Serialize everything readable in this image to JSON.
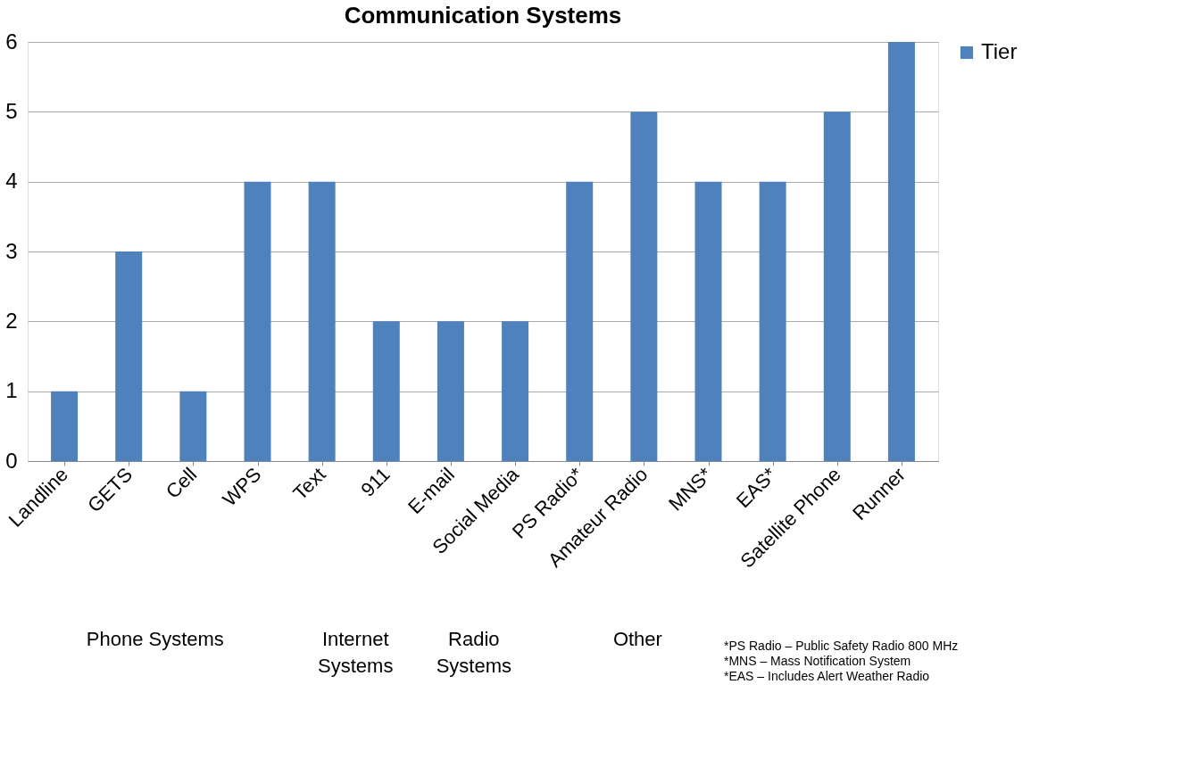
{
  "chart_data": {
    "type": "bar",
    "title": "Communication Systems",
    "categories": [
      "Landline",
      "GETS",
      "Cell",
      "WPS",
      "Text",
      "911",
      "E-mail",
      "Social Media",
      "PS Radio*",
      "Amateur Radio",
      "MNS*",
      "EAS*",
      "Satellite Phone",
      "Runner"
    ],
    "series": [
      {
        "name": "Tier",
        "color": "#4f81bd",
        "values": [
          1,
          3,
          1,
          4,
          4,
          2,
          2,
          2,
          4,
          5,
          4,
          4,
          5,
          6
        ]
      }
    ],
    "ylim": [
      0,
      6
    ],
    "yticks": [
      0,
      1,
      2,
      3,
      4,
      5,
      6
    ],
    "grid": "y",
    "legend": "right",
    "annotations": [
      "Phone Systems",
      "Internet Systems",
      "Radio Systems",
      "Other",
      "*PS Radio – Public Safety Radio 800 MHz",
      "*MNS – Mass Notification System",
      "*EAS – Includes Alert Weather Radio"
    ]
  }
}
